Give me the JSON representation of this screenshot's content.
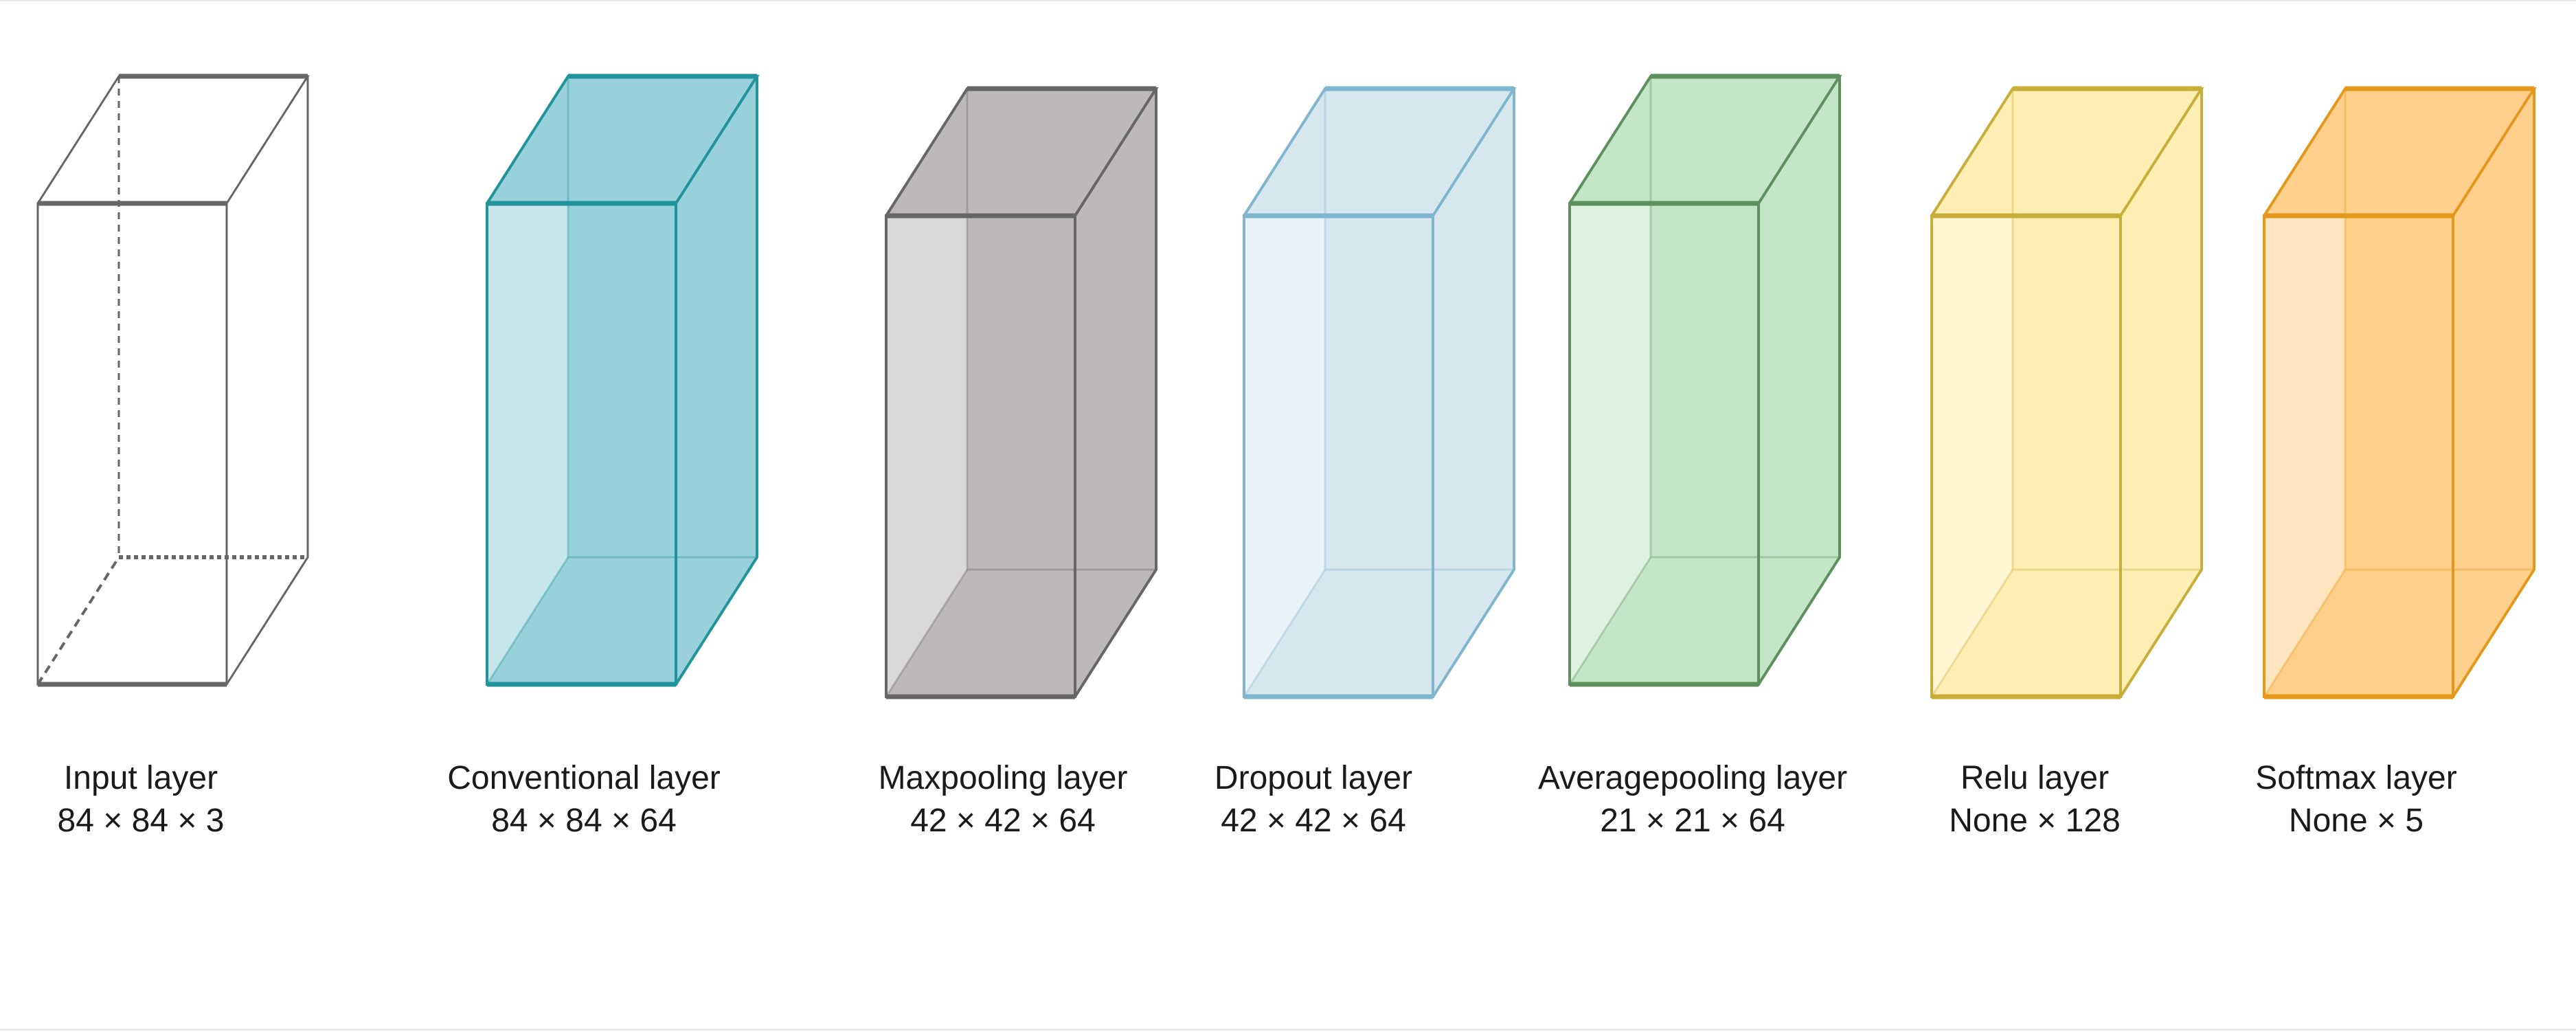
{
  "layers": [
    {
      "id": "input",
      "name": "Input layer",
      "shape": "84 × 84 × 3",
      "stroke": "#666666",
      "fill": "none",
      "style": "wireframe"
    },
    {
      "id": "conv",
      "name": "Conventional layer",
      "shape": "84 × 84 × 64",
      "stroke": "#21939a",
      "fill": "#98d1d9",
      "style": "solid"
    },
    {
      "id": "maxpool",
      "name": "Maxpooling layer",
      "shape": "42 × 42 × 64",
      "stroke": "#666666",
      "fill": "#bdb9b8",
      "style": "solid"
    },
    {
      "id": "dropout",
      "name": "Dropout layer",
      "shape": "42 × 42 × 64",
      "stroke": "#7fb6cd",
      "fill": "#d7e7ee",
      "style": "solid"
    },
    {
      "id": "avgpool",
      "name": "Averagepooling layer",
      "shape": "21 × 21 × 64",
      "stroke": "#5e8f5e",
      "fill": "#c5e5c8",
      "style": "solid"
    },
    {
      "id": "relu",
      "name": "Relu layer",
      "shape": "None × 128",
      "stroke": "#c9ad3a",
      "fill": "#ffeeb1",
      "style": "solid"
    },
    {
      "id": "softmax",
      "name": "Softmax layer",
      "shape": "None × 5",
      "stroke": "#e3981b",
      "fill": "#ffcf8b",
      "style": "solid"
    }
  ]
}
